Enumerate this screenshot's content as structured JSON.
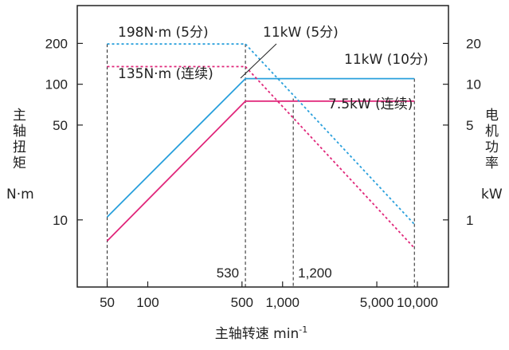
{
  "chart_data": {
    "type": "line",
    "x_scale": "log",
    "y_scale": "log",
    "xlim": [
      30,
      17000
    ],
    "ylim_left": [
      3.2,
      380
    ],
    "ylim_right": [
      0.32,
      38
    ],
    "x_ticks": [
      50,
      100,
      500,
      1000,
      5000,
      10000
    ],
    "x_tick_labels": [
      "50",
      "100",
      "500",
      "1,000",
      "5,000",
      "10,000"
    ],
    "y_left_ticks": [
      200,
      100,
      50,
      10
    ],
    "y_left_tick_labels": [
      "200",
      "100",
      "50",
      "10"
    ],
    "y_right_ticks": [
      20,
      10,
      5,
      1
    ],
    "y_right_tick_labels": [
      "20",
      "10",
      "5",
      "1"
    ],
    "xlabel": "主轴转速 min",
    "xlabel_superscript": "-1",
    "ylabel_left_chars": [
      "主",
      "轴",
      "扭",
      "矩"
    ],
    "ylabel_left_unit": "N·m",
    "ylabel_right_chars": [
      "电",
      "机",
      "功",
      "率"
    ],
    "ylabel_right_unit": "kW",
    "vertical_markers": [
      {
        "x": 50,
        "label": ""
      },
      {
        "x": 530,
        "label": "530"
      },
      {
        "x": 1200,
        "label": "1,200"
      },
      {
        "x": 9500,
        "label": ""
      }
    ],
    "series": [
      {
        "axis": "left",
        "style": "dashed",
        "color": "#2aa0dc",
        "x": [
          50,
          530
        ],
        "y": [
          198,
          198
        ]
      },
      {
        "axis": "left",
        "style": "dashed",
        "color": "#e0267a",
        "x": [
          50,
          530
        ],
        "y": [
          135,
          135
        ]
      },
      {
        "axis": "right",
        "style": "solid",
        "color": "#2aa0dc",
        "x": [
          50,
          530,
          9500
        ],
        "y": [
          1.05,
          11,
          11
        ]
      },
      {
        "axis": "right",
        "style": "solid",
        "color": "#e0267a",
        "x": [
          50,
          530,
          9500
        ],
        "y": [
          0.7,
          7.5,
          7.5
        ]
      },
      {
        "axis": "left",
        "style": "dashed",
        "color": "#2aa0dc",
        "x": [
          530,
          9500
        ],
        "y": [
          198,
          9.3
        ]
      },
      {
        "axis": "left",
        "style": "dashed",
        "color": "#e0267a",
        "x": [
          530,
          9500
        ],
        "y": [
          135,
          6.2
        ]
      }
    ],
    "annotations": [
      {
        "text": "198N·m (5分)"
      },
      {
        "text": "135N·m (连续)"
      },
      {
        "text": "11kW (5分)"
      },
      {
        "text": "11kW (10分)"
      },
      {
        "text": "7.5kW (连续)"
      }
    ]
  }
}
